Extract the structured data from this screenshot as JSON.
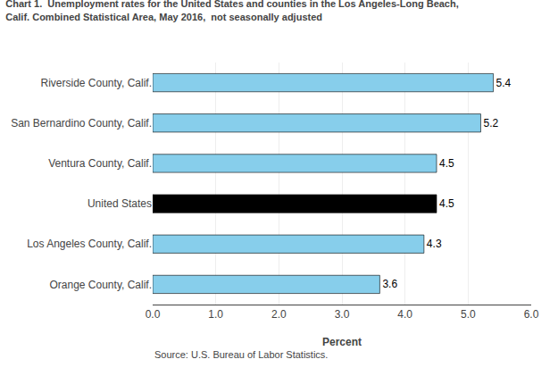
{
  "chart_data": {
    "type": "bar",
    "orientation": "horizontal",
    "title": "Chart 1.  Unemployment rates for the United States and counties in the Los Angeles-Long Beach,\nCalif. Combined Statistical Area, May 2016,  not seasonally adjusted",
    "categories": [
      "Orange County, Calif.",
      "Los Angeles County, Calif.",
      "United States",
      "Ventura County, Calif.",
      "San Bernardino County, Calif.",
      "Riverside County, Calif."
    ],
    "values": [
      3.6,
      4.3,
      4.5,
      4.5,
      5.2,
      5.4
    ],
    "colors": [
      "#87CEEB",
      "#87CEEB",
      "#000000",
      "#87CEEB",
      "#87CEEB",
      "#87CEEB"
    ],
    "xlabel": "Percent",
    "xlim": [
      0,
      6.0
    ],
    "xticks": [
      {
        "value": 0,
        "label": "0.0"
      },
      {
        "value": 1,
        "label": "1.0"
      },
      {
        "value": 2,
        "label": "2.0"
      },
      {
        "value": 3,
        "label": "3.0"
      },
      {
        "value": 4,
        "label": "4.0"
      },
      {
        "value": 5,
        "label": "5.0"
      },
      {
        "value": 6,
        "label": "6.0"
      }
    ],
    "grid": true,
    "data_labels": true,
    "annotations": [
      "Source: U.S. Bureau of Labor Statistics."
    ]
  }
}
